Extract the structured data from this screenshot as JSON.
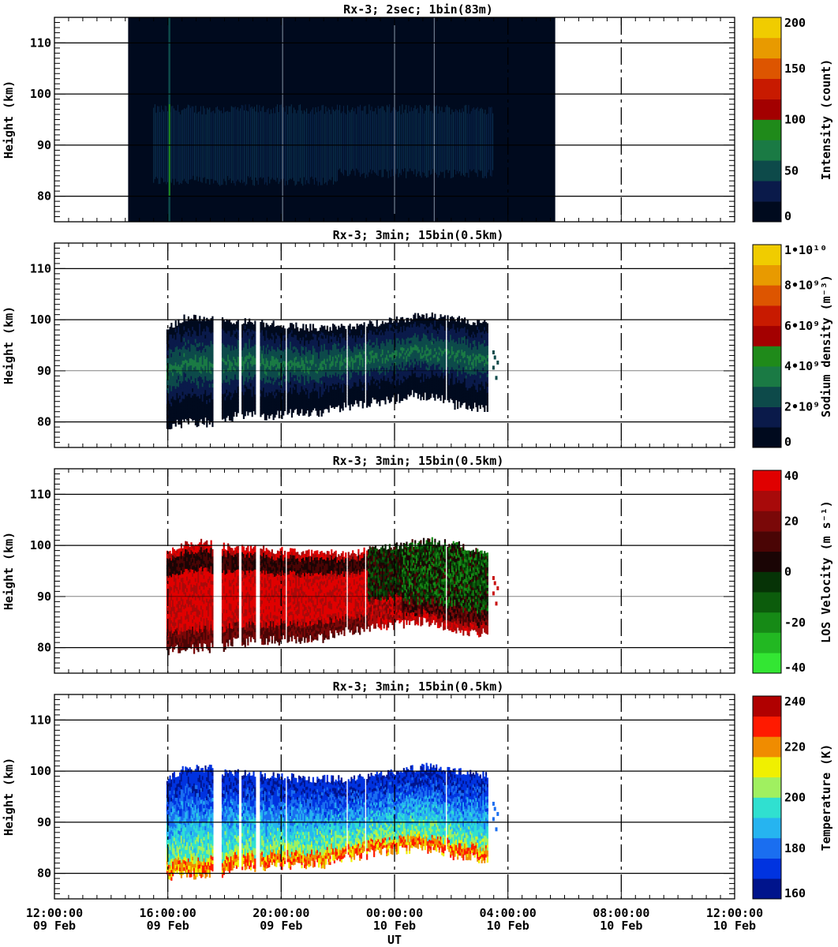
{
  "x_axis": {
    "label": "UT",
    "ticks": [
      {
        "time": "12:00:00",
        "date": "09 Feb",
        "hour": -12
      },
      {
        "time": "16:00:00",
        "date": "09 Feb",
        "hour": -8
      },
      {
        "time": "20:00:00",
        "date": "09 Feb",
        "hour": -4
      },
      {
        "time": "00:00:00",
        "date": "10 Feb",
        "hour": 0
      },
      {
        "time": "04:00:00",
        "date": "10 Feb",
        "hour": 4
      },
      {
        "time": "08:00:00",
        "date": "10 Feb",
        "hour": 8
      },
      {
        "time": "12:00:00",
        "date": "10 Feb",
        "hour": 12
      }
    ]
  },
  "chart_data": [
    {
      "type": "heatmap",
      "title": "Rx-3;  2sec; 1bin(83m)",
      "ylabel": "Height (km)",
      "ylim": [
        75,
        115
      ],
      "yticks": [
        "80",
        "90",
        "100",
        "110"
      ],
      "xlim": [
        "2024-02-09 12:00:00",
        "2024-02-10 12:00:00"
      ],
      "data_coverage": {
        "start": "09 Feb 14:35",
        "end": "10 Feb 05:40"
      },
      "colorbar": {
        "label": "Intensity (count)",
        "ticks": [
          "0",
          "50",
          "100",
          "150",
          "200"
        ],
        "colors": [
          "#000a1e",
          "#0a1a4a",
          "#0d4a4a",
          "#1a7a44",
          "#1f8a1a",
          "#a30000",
          "#c81a00",
          "#dd5500",
          "#e89a00",
          "#f0cc00"
        ]
      }
    },
    {
      "type": "heatmap",
      "title": "Rx-3; 3min; 15bin(0.5km)",
      "ylabel": "Height (km)",
      "ylim": [
        75,
        115
      ],
      "yticks": [
        "80",
        "90",
        "100",
        "110"
      ],
      "data_coverage": {
        "start": "09 Feb 15:50",
        "end": "10 Feb 03:30"
      },
      "colorbar": {
        "label": "Sodium density (m⁻³)",
        "ticks": [
          "0",
          "2•10⁹",
          "4•10⁹",
          "6•10⁹",
          "8•10⁹",
          "1•10¹⁰"
        ],
        "colors": [
          "#000a1e",
          "#0a1a4a",
          "#0d4a4a",
          "#1a7a44",
          "#1f8a1a",
          "#a30000",
          "#c81a00",
          "#dd5500",
          "#e89a00",
          "#f0cc00"
        ]
      }
    },
    {
      "type": "heatmap",
      "title": "Rx-3; 3min; 15bin(0.5km)",
      "ylabel": "Height (km)",
      "ylim": [
        75,
        115
      ],
      "yticks": [
        "80",
        "90",
        "100",
        "110"
      ],
      "data_coverage": {
        "start": "09 Feb 15:50",
        "end": "10 Feb 03:30"
      },
      "colorbar": {
        "label": "LOS Velocity (m s⁻¹)",
        "ticks": [
          "-40",
          "-20",
          "0",
          "20",
          "40"
        ],
        "colors": [
          "#33e633",
          "#22b822",
          "#168a16",
          "#0c5c0c",
          "#063306",
          "#1a0505",
          "#4a0505",
          "#7a0808",
          "#a80a0a",
          "#e00000"
        ]
      }
    },
    {
      "type": "heatmap",
      "title": "Rx-3; 3min; 15bin(0.5km)",
      "ylabel": "Height (km)",
      "ylim": [
        75,
        115
      ],
      "yticks": [
        "80",
        "90",
        "100",
        "110"
      ],
      "data_coverage": {
        "start": "09 Feb 15:50",
        "end": "10 Feb 03:30"
      },
      "colorbar": {
        "label": "Temperature (K)",
        "ticks": [
          "160",
          "180",
          "200",
          "220",
          "240"
        ],
        "colors": [
          "#00148c",
          "#0033e0",
          "#1a6ef0",
          "#26b4f0",
          "#30e0d0",
          "#a0f060",
          "#f0f000",
          "#f08c00",
          "#ff1a00",
          "#b00000"
        ]
      }
    }
  ]
}
